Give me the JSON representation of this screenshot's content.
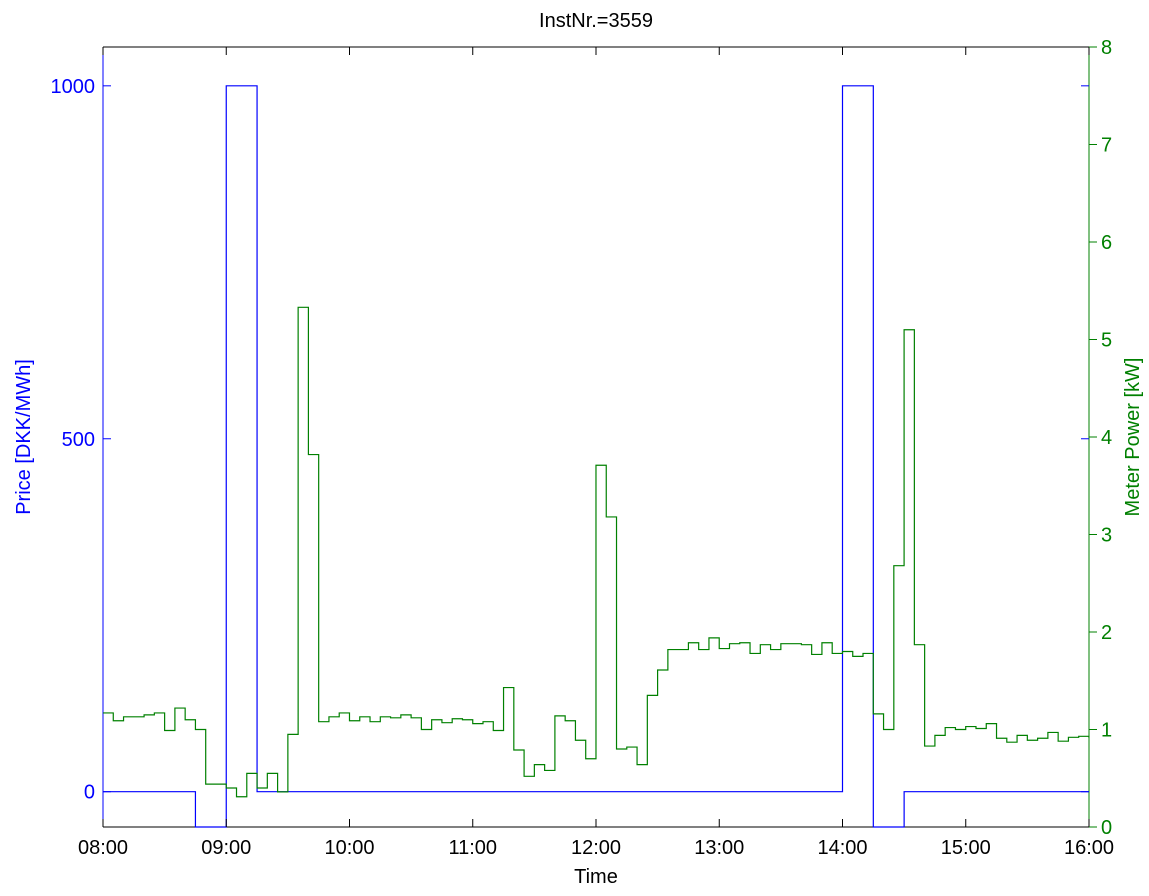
{
  "chart_data": {
    "type": "line",
    "title": "InstNr.=3559",
    "xlabel": "Time",
    "ylabel_left": "Price [DKK/MWh]",
    "ylabel_right": "Meter Power [kW]",
    "x_ticks": [
      "08:00",
      "09:00",
      "10:00",
      "11:00",
      "12:00",
      "13:00",
      "14:00",
      "15:00",
      "16:00"
    ],
    "y_left_ticks": [
      "0",
      "500",
      "1000"
    ],
    "y_right_ticks": [
      "0",
      "1",
      "2",
      "3",
      "4",
      "5",
      "6",
      "7",
      "8"
    ],
    "x_range_hours": [
      8,
      16
    ],
    "y_left_range": [
      -50,
      1055
    ],
    "y_right_range": [
      0,
      8
    ],
    "grid": false,
    "step_interval_hours": 0.08333,
    "colors": {
      "price": "#0000ff",
      "power": "#008000",
      "axes": "#000000"
    },
    "series": [
      {
        "axis": "left",
        "color": "#0000ff",
        "x": [
          8.0,
          8.75,
          9.0,
          9.25,
          14.0,
          14.25,
          14.5,
          16.0
        ],
        "values": [
          0,
          -60,
          1000,
          0,
          1000,
          -60,
          0,
          0
        ]
      },
      {
        "axis": "right",
        "color": "#008000",
        "x_start": 8.0,
        "values": [
          1.17,
          1.09,
          1.13,
          1.13,
          1.15,
          1.17,
          0.99,
          1.22,
          1.1,
          1.0,
          0.44,
          0.44,
          0.4,
          0.31,
          0.55,
          0.4,
          0.55,
          0.36,
          0.95,
          5.33,
          3.82,
          1.08,
          1.13,
          1.17,
          1.09,
          1.13,
          1.08,
          1.13,
          1.12,
          1.15,
          1.12,
          1.0,
          1.1,
          1.07,
          1.11,
          1.1,
          1.06,
          1.08,
          0.99,
          1.43,
          0.79,
          0.52,
          0.64,
          0.58,
          1.14,
          1.09,
          0.89,
          0.7,
          3.71,
          3.18,
          0.8,
          0.82,
          0.64,
          1.35,
          1.61,
          1.82,
          1.82,
          1.89,
          1.82,
          1.94,
          1.83,
          1.88,
          1.89,
          1.78,
          1.87,
          1.82,
          1.88,
          1.88,
          1.87,
          1.77,
          1.89,
          1.78,
          1.8,
          1.75,
          1.78,
          1.16,
          1.0,
          2.68,
          5.1,
          1.87,
          0.83,
          0.94,
          1.02,
          1.0,
          1.03,
          1.01,
          1.06,
          0.91,
          0.87,
          0.94,
          0.89,
          0.91,
          0.97,
          0.88,
          0.92,
          0.93,
          0.92
        ]
      }
    ]
  }
}
